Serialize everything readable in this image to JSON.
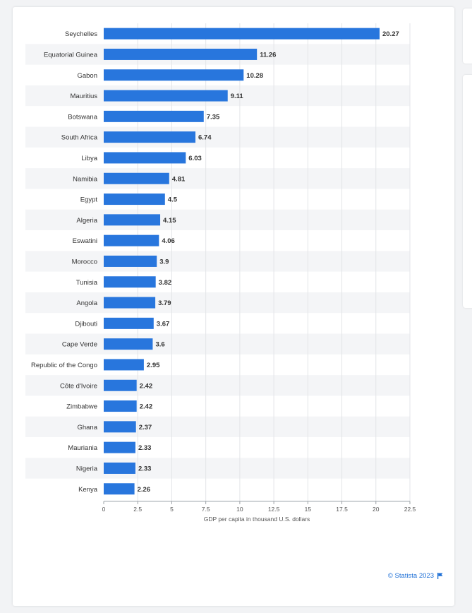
{
  "colors": {
    "bar": "#2876dd",
    "band": "#f4f5f7",
    "axis": "#9aa0a6",
    "label": "#333333",
    "value": "#333333"
  },
  "chart_data": {
    "type": "bar",
    "orientation": "horizontal",
    "title": "",
    "xlabel": "GDP per capita in thousand U.S. dollars",
    "ylabel": "",
    "xlim": [
      0,
      22.5
    ],
    "xticks": [
      "0",
      "2.5",
      "5",
      "7.5",
      "10",
      "12.5",
      "15",
      "17.5",
      "20",
      "22.5"
    ],
    "categories": [
      "Seychelles",
      "Equatorial Guinea",
      "Gabon",
      "Mauritius",
      "Botswana",
      "South Africa",
      "Libya",
      "Namibia",
      "Egypt",
      "Algeria",
      "Eswatini",
      "Morocco",
      "Tunisia",
      "Angola",
      "Djibouti",
      "Cape Verde",
      "Republic of the Congo",
      "Côte d'Ivoire",
      "Zimbabwe",
      "Ghana",
      "Mauriania",
      "Nigeria",
      "Kenya"
    ],
    "values": [
      20.27,
      11.26,
      10.28,
      9.11,
      7.35,
      6.74,
      6.03,
      4.81,
      4.5,
      4.15,
      4.06,
      3.9,
      3.82,
      3.79,
      3.67,
      3.6,
      2.95,
      2.42,
      2.42,
      2.37,
      2.33,
      2.33,
      2.26
    ],
    "value_labels": [
      "20.27",
      "11.26",
      "10.28",
      "9.11",
      "7.35",
      "6.74",
      "6.03",
      "4.81",
      "4.5",
      "4.15",
      "4.06",
      "3.9",
      "3.82",
      "3.79",
      "3.67",
      "3.6",
      "2.95",
      "2.42",
      "2.42",
      "2.37",
      "2.33",
      "2.33",
      "2.26"
    ]
  },
  "footer": {
    "credit": "© Statista 2023",
    "flag_icon": "flag-icon"
  }
}
